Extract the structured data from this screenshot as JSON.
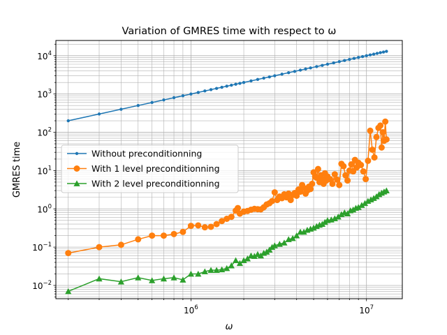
{
  "chart_data": {
    "type": "line",
    "title": "Variation of GMRES time with respect to ω",
    "xlabel": "ω",
    "ylabel": "GMRES time",
    "x_scale": "log",
    "y_scale": "log",
    "xlim": [
      170000,
      16000000
    ],
    "ylim": [
      0.0045,
      25000
    ],
    "grid": "both (major and minor)",
    "legend_position": "center-left",
    "x_tick_labels": [
      {
        "value": 1000000,
        "base": "10",
        "exp": "6"
      },
      {
        "value": 10000000,
        "base": "10",
        "exp": "7"
      }
    ],
    "y_tick_labels": [
      {
        "value": 0.01,
        "base": "10",
        "exp": "−2"
      },
      {
        "value": 0.1,
        "base": "10",
        "exp": "−1"
      },
      {
        "value": 1,
        "base": "10",
        "exp": "0"
      },
      {
        "value": 10,
        "base": "10",
        "exp": "1"
      },
      {
        "value": 100,
        "base": "10",
        "exp": "2"
      },
      {
        "value": 1000,
        "base": "10",
        "exp": "3"
      },
      {
        "value": 10000,
        "base": "10",
        "exp": "4"
      }
    ],
    "series": [
      {
        "name": "Without preconditionning",
        "color": "#1f77b4",
        "marker": "point",
        "x": [
          200000,
          300000,
          400000,
          500000,
          600000,
          700000,
          800000,
          900000,
          1000000,
          1100000,
          1200000,
          1300000,
          1400000,
          1500000,
          1600000,
          1700000,
          1800000,
          1900000,
          2000000,
          2200000,
          2400000,
          2600000,
          2800000,
          3000000,
          3300000,
          3600000,
          3900000,
          4200000,
          4500000,
          4800000,
          5200000,
          5600000,
          6000000,
          6500000,
          7000000,
          7500000,
          8000000,
          8500000,
          9000000,
          9500000,
          10000000,
          10500000,
          11000000,
          11500000,
          12000000,
          12500000,
          13000000
        ],
        "values": [
          200,
          300,
          400,
          500,
          600,
          700,
          800,
          900,
          1000,
          1100,
          1200,
          1300,
          1400,
          1500,
          1600,
          1700,
          1800,
          1900,
          2000,
          2200,
          2400,
          2600,
          2800,
          3000,
          3300,
          3600,
          3900,
          4200,
          4500,
          4800,
          5200,
          5600,
          6000,
          6500,
          7000,
          7500,
          8000,
          8500,
          9000,
          9500,
          10000,
          10500,
          11000,
          11500,
          12000,
          12500,
          13000
        ]
      },
      {
        "name": "With 1 level preconditionning",
        "color": "#ff7f0e",
        "marker": "circle",
        "x": [
          200000,
          300000,
          400000,
          500000,
          600000,
          700000,
          800000,
          900000,
          1000000,
          1100000,
          1200000,
          1300000,
          1400000,
          1500000,
          1600000,
          1700000,
          1800000,
          1850000,
          1900000,
          2000000,
          2100000,
          2200000,
          2300000,
          2400000,
          2500000,
          2600000,
          2700000,
          2800000,
          2900000,
          3000000,
          3100000,
          3200000,
          3300000,
          3400000,
          3500000,
          3600000,
          3700000,
          3800000,
          3900000,
          4000000,
          4100000,
          4200000,
          4300000,
          4400000,
          4500000,
          4600000,
          4700000,
          4800000,
          4900000,
          5000000,
          5100000,
          5200000,
          5300000,
          5400000,
          5500000,
          5600000,
          5700000,
          5800000,
          5900000,
          6000000,
          6200000,
          6400000,
          6600000,
          6800000,
          7000000,
          7200000,
          7400000,
          7600000,
          7800000,
          8000000,
          8200000,
          8400000,
          8600000,
          8800000,
          9000000,
          9300000,
          9600000,
          9900000,
          10200000,
          10500000,
          10800000,
          11100000,
          11400000,
          11700000,
          12000000,
          12200000,
          12400000,
          12600000,
          12800000,
          13000000
        ],
        "values": [
          0.07,
          0.1,
          0.115,
          0.16,
          0.2,
          0.2,
          0.22,
          0.25,
          0.36,
          0.37,
          0.33,
          0.34,
          0.4,
          0.48,
          0.55,
          0.62,
          0.9,
          1.05,
          0.75,
          0.85,
          0.88,
          0.95,
          1.0,
          0.98,
          0.97,
          1.1,
          1.3,
          1.4,
          1.6,
          2.7,
          1.7,
          2.1,
          1.9,
          2.4,
          2.0,
          2.5,
          1.7,
          2.3,
          2.6,
          2.2,
          3.2,
          2.8,
          4.2,
          3.5,
          2.5,
          3.0,
          3.8,
          3.3,
          4.5,
          9.0,
          7.0,
          6.5,
          11.0,
          5.0,
          7.5,
          6.0,
          4.5,
          8.5,
          5.5,
          7.0,
          6.0,
          4.5,
          8.0,
          5.8,
          4.2,
          15.0,
          13.0,
          7.5,
          5.5,
          10.0,
          14.5,
          9.5,
          19.0,
          12.0,
          16.0,
          14.0,
          9.5,
          6.0,
          18.0,
          110,
          35.0,
          22.0,
          75.0,
          130,
          150,
          40.0,
          100,
          60.0,
          190,
          65.0
        ]
      },
      {
        "name": "With 2 level preconditionning",
        "color": "#2ca02c",
        "marker": "triangle",
        "x": [
          200000,
          300000,
          400000,
          500000,
          600000,
          700000,
          800000,
          900000,
          1000000,
          1100000,
          1200000,
          1300000,
          1400000,
          1500000,
          1600000,
          1700000,
          1800000,
          1900000,
          2000000,
          2100000,
          2200000,
          2300000,
          2400000,
          2500000,
          2600000,
          2700000,
          2800000,
          2900000,
          3000000,
          3200000,
          3400000,
          3600000,
          3800000,
          4000000,
          4200000,
          4400000,
          4600000,
          4800000,
          5000000,
          5200000,
          5400000,
          5600000,
          5800000,
          6000000,
          6300000,
          6600000,
          6900000,
          7200000,
          7500000,
          7800000,
          8100000,
          8400000,
          8700000,
          9000000,
          9400000,
          9800000,
          10200000,
          10600000,
          11000000,
          11400000,
          11800000,
          12200000,
          12600000,
          13000000
        ],
        "values": [
          0.007,
          0.015,
          0.0125,
          0.016,
          0.0135,
          0.015,
          0.016,
          0.014,
          0.02,
          0.02,
          0.023,
          0.025,
          0.025,
          0.026,
          0.028,
          0.033,
          0.045,
          0.038,
          0.045,
          0.05,
          0.06,
          0.058,
          0.065,
          0.06,
          0.07,
          0.075,
          0.085,
          0.1,
          0.11,
          0.12,
          0.13,
          0.16,
          0.17,
          0.2,
          0.25,
          0.25,
          0.28,
          0.3,
          0.32,
          0.35,
          0.38,
          0.4,
          0.45,
          0.5,
          0.52,
          0.56,
          0.62,
          0.72,
          0.8,
          0.75,
          0.9,
          0.95,
          1.05,
          1.1,
          1.25,
          1.4,
          1.6,
          1.75,
          1.9,
          2.1,
          2.4,
          2.6,
          2.8,
          3.0
        ]
      }
    ]
  }
}
